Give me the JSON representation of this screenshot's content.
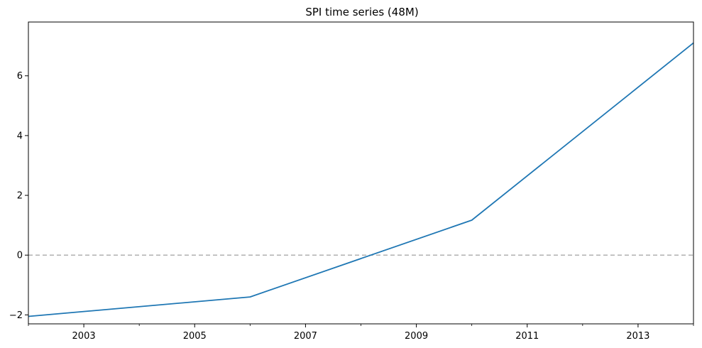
{
  "chart_data": {
    "type": "line",
    "title": "SPI time series (48M)",
    "xlabel": "",
    "ylabel": "",
    "x": [
      "2002-01",
      "2006-01",
      "2010-01",
      "2014-01"
    ],
    "series": [
      {
        "values": [
          -2.05,
          -1.4,
          1.17,
          7.1
        ],
        "color": "#1f77b4"
      }
    ],
    "xlim": [
      "2002-01",
      "2014-01"
    ],
    "ylim": [
      -2.3,
      7.8
    ],
    "x_major_ticks": [
      "2003",
      "2005",
      "2007",
      "2009",
      "2011",
      "2013"
    ],
    "y_ticks": [
      -2,
      0,
      2,
      4,
      6
    ],
    "reference_line": {
      "y": 0,
      "style": "dashed",
      "color": "#b0b0b0"
    },
    "grid": false,
    "legend": "none"
  }
}
